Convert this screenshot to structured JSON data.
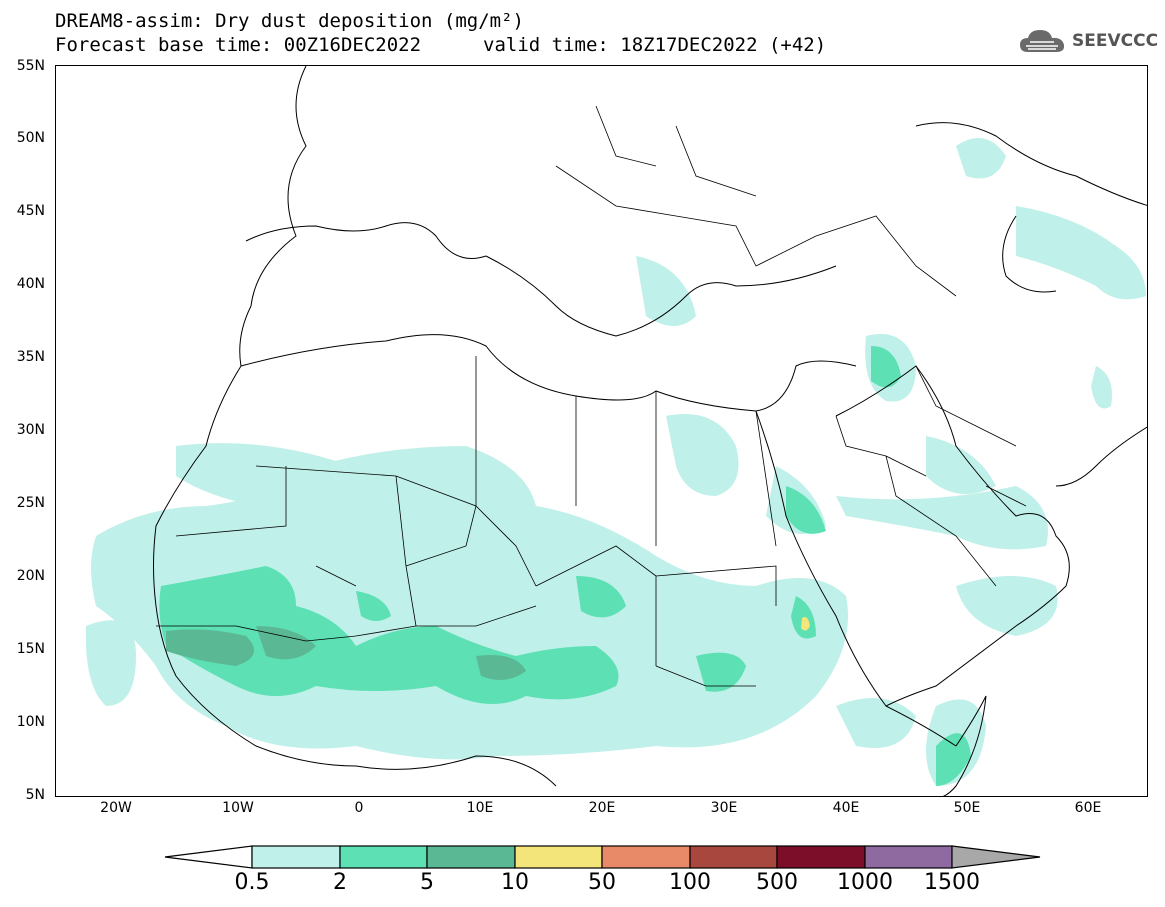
{
  "header": {
    "title_line1": "DREAM8-assim: Dry dust deposition (mg/m²)",
    "title_line2": "Forecast base time: 00Z16DEC2022",
    "title_line3": "valid time: 18Z17DEC2022 (+42)",
    "logo_text": "SEEVCCC"
  },
  "axes": {
    "lat_labels": [
      "55N",
      "50N",
      "45N",
      "40N",
      "35N",
      "30N",
      "25N",
      "20N",
      "15N",
      "10N",
      "5N"
    ],
    "lon_labels": [
      "20W",
      "10W",
      "0",
      "10E",
      "20E",
      "30E",
      "40E",
      "50E",
      "60E"
    ]
  },
  "colorbar": {
    "labels": [
      "0.5",
      "2",
      "5",
      "10",
      "50",
      "100",
      "500",
      "1000",
      "1500"
    ],
    "colors": [
      "#ffffff",
      "#bff0e9",
      "#5ce0b4",
      "#5bb894",
      "#f3e57a",
      "#e88a68",
      "#a8473e",
      "#7c0e2a",
      "#8e6aa0",
      "#a8a8a8"
    ]
  },
  "colors": {
    "level1": "#bff0e9",
    "level2": "#5ce0b4",
    "level3": "#5bb894",
    "level4": "#f3e57a"
  }
}
